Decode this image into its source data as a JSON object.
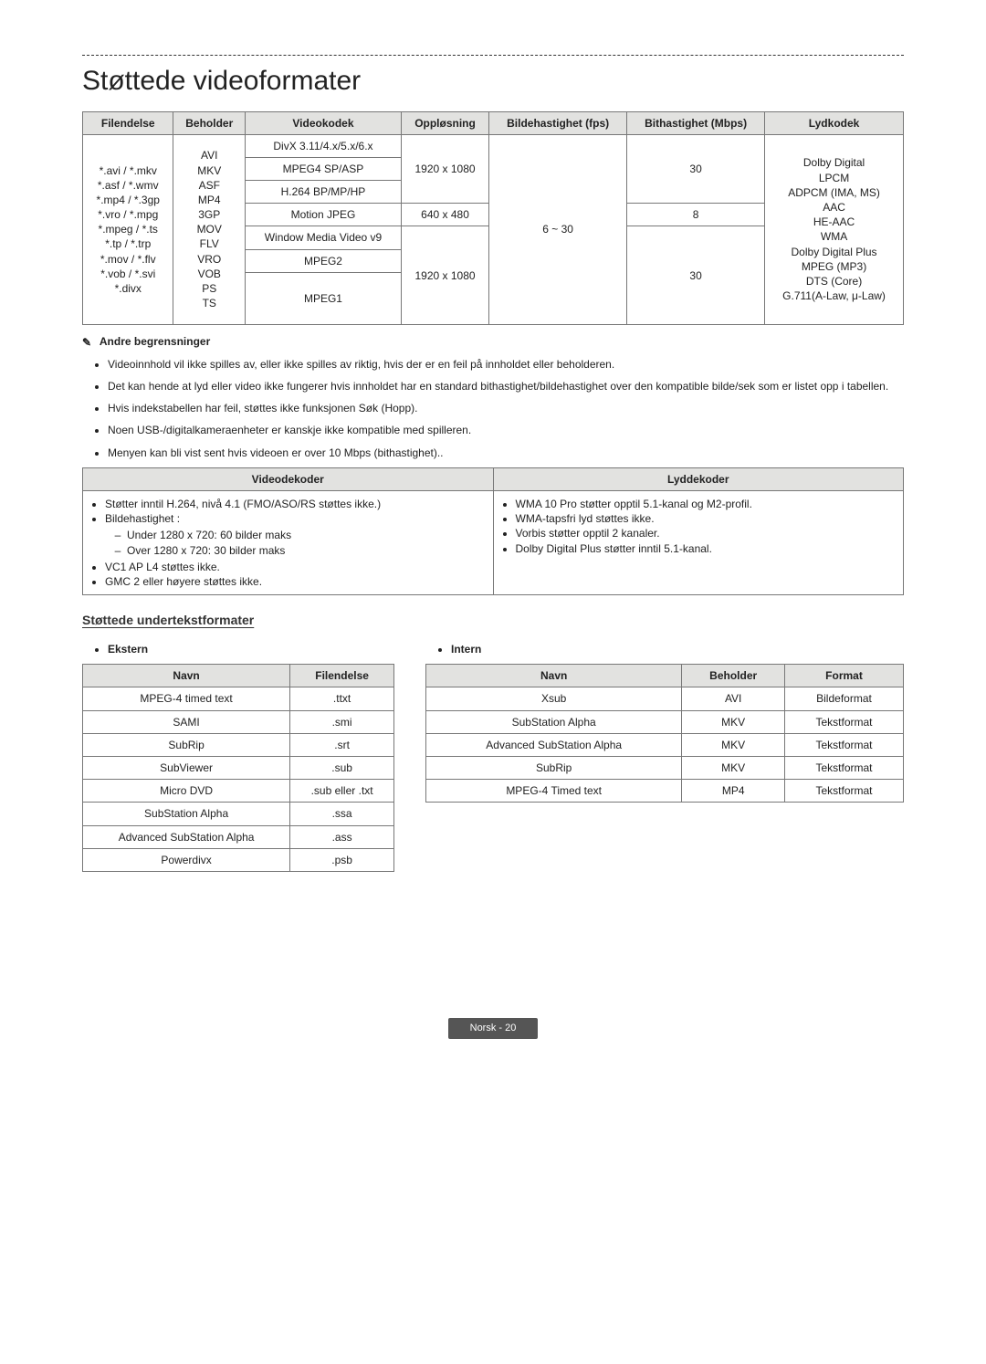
{
  "title": "Støttede videoformater",
  "mainTable": {
    "headers": [
      "Filendelse",
      "Beholder",
      "Videokodek",
      "Oppløsning",
      "Bildehastighet (fps)",
      "Bithastighet (Mbps)",
      "Lydkodek"
    ],
    "fileext": "*.avi / *.mkv\n*.asf / *.wmv\n*.mp4 / *.3gp\n*.vro / *.mpg\n*.mpeg / *.ts\n*.tp / *.trp\n*.mov / *.flv\n*.vob / *.svi\n*.divx",
    "container": "AVI\nMKV\nASF\nMP4\n3GP\nMOV\nFLV\nVRO\nVOB\nPS\nTS",
    "row1_codecs": [
      "DivX 3.11/4.x/5.x/6.x",
      "MPEG4 SP/ASP",
      "H.264 BP/MP/HP"
    ],
    "row1_res": "1920 x 1080",
    "row1_bitrate": "30",
    "row2_codec": "Motion JPEG",
    "row2_res": "640 x 480",
    "row2_bitrate": "8",
    "row3a_codec": "Window Media Video v9",
    "row3b_codec": "MPEG2",
    "row3c_codec": "MPEG1",
    "row3_res": "1920 x 1080",
    "row3_bitrate": "30",
    "fps": "6 ~ 30",
    "audio": "Dolby Digital\nLPCM\nADPCM (IMA, MS)\nAAC\nHE-AAC\nWMA\nDolby Digital Plus\nMPEG (MP3)\nDTS (Core)\nG.711(A-Law, μ-Law)"
  },
  "limitations": {
    "heading": "Andre begrensninger",
    "items": [
      "Videoinnhold vil ikke spilles av, eller ikke spilles av riktig, hvis der er en feil på innholdet eller beholderen.",
      "Det kan hende at lyd eller video ikke fungerer hvis innholdet har en standard bithastighet/bildehastighet over den kompatible bilde/sek som er listet opp i tabellen.",
      "Hvis indekstabellen har feil, støttes ikke funksjonen Søk (Hopp).",
      "Noen USB-/digitalkameraenheter er kanskje ikke kompatible med spilleren.",
      "Menyen kan bli vist sent hvis videoen er over 10 Mbps (bithastighet).."
    ]
  },
  "decoders": {
    "headers": [
      "Videodekoder",
      "Lyddekoder"
    ],
    "video": {
      "l1": "Støtter inntil H.264, nivå 4.1 (FMO/ASO/RS støttes ikke.)",
      "l2": "Bildehastighet :",
      "l2a": "Under 1280 x 720: 60 bilder maks",
      "l2b": "Over 1280 x 720: 30 bilder maks",
      "l3": "VC1 AP L4 støttes ikke.",
      "l4": "GMC 2 eller høyere støttes ikke."
    },
    "audio": {
      "a1": "WMA 10 Pro støtter opptil 5.1-kanal og M2-profil.",
      "a2": "WMA-tapsfri lyd støttes ikke.",
      "a3": "Vorbis støtter opptil 2 kanaler.",
      "a4": "Dolby Digital Plus støtter inntil 5.1-kanal."
    }
  },
  "subtitle": {
    "heading": "Støttede undertekstformater",
    "externLabel": "Ekstern",
    "internLabel": "Intern",
    "extHeaders": [
      "Navn",
      "Filendelse"
    ],
    "ext": [
      [
        "MPEG-4 timed text",
        ".ttxt"
      ],
      [
        "SAMI",
        ".smi"
      ],
      [
        "SubRip",
        ".srt"
      ],
      [
        "SubViewer",
        ".sub"
      ],
      [
        "Micro DVD",
        ".sub eller .txt"
      ],
      [
        "SubStation Alpha",
        ".ssa"
      ],
      [
        "Advanced SubStation Alpha",
        ".ass"
      ],
      [
        "Powerdivx",
        ".psb"
      ]
    ],
    "intHeaders": [
      "Navn",
      "Beholder",
      "Format"
    ],
    "int": [
      [
        "Xsub",
        "AVI",
        "Bildeformat"
      ],
      [
        "SubStation Alpha",
        "MKV",
        "Tekstformat"
      ],
      [
        "Advanced SubStation Alpha",
        "MKV",
        "Tekstformat"
      ],
      [
        "SubRip",
        "MKV",
        "Tekstformat"
      ],
      [
        "MPEG-4 Timed text",
        "MP4",
        "Tekstformat"
      ]
    ]
  },
  "footer": "Norsk - 20"
}
